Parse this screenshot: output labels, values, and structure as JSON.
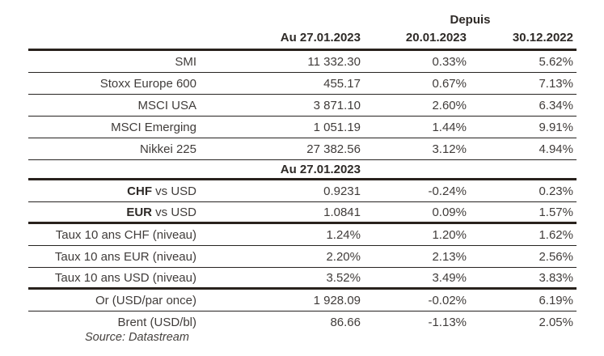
{
  "table": {
    "header": {
      "since_label": "Depuis",
      "col_value": "Au 27.01.2023",
      "col_week": "20.01.2023",
      "col_ytd": "30.12.2022"
    },
    "mid_header": {
      "date_label": "Au 27.01.2023"
    },
    "rows": [
      {
        "label_bold": "",
        "label": "SMI",
        "value": "11 332.30",
        "chg_week": "0.33%",
        "chg_ytd": "5.62%"
      },
      {
        "label_bold": "",
        "label": "Stoxx Europe 600",
        "value": "455.17",
        "chg_week": "0.67%",
        "chg_ytd": "7.13%"
      },
      {
        "label_bold": "",
        "label": "MSCI USA",
        "value": "3 871.10",
        "chg_week": "2.60%",
        "chg_ytd": "6.34%"
      },
      {
        "label_bold": "",
        "label": "MSCI Emerging",
        "value": "1 051.19",
        "chg_week": "1.44%",
        "chg_ytd": "9.91%"
      },
      {
        "label_bold": "",
        "label": "Nikkei 225",
        "value": "27 382.56",
        "chg_week": "3.12%",
        "chg_ytd": "4.94%"
      },
      {
        "label_bold": "CHF",
        "label": " vs USD",
        "value": "0.9231",
        "chg_week": "-0.24%",
        "chg_ytd": "0.23%"
      },
      {
        "label_bold": "EUR",
        "label": " vs USD",
        "value": "1.0841",
        "chg_week": "0.09%",
        "chg_ytd": "1.57%"
      },
      {
        "label_bold": "",
        "label": "Taux 10 ans CHF (niveau)",
        "value": "1.24%",
        "chg_week": "1.20%",
        "chg_ytd": "1.62%"
      },
      {
        "label_bold": "",
        "label": "Taux 10 ans EUR (niveau)",
        "value": "2.20%",
        "chg_week": "2.13%",
        "chg_ytd": "2.56%"
      },
      {
        "label_bold": "",
        "label": "Taux 10 ans USD (niveau)",
        "value": "3.52%",
        "chg_week": "3.49%",
        "chg_ytd": "3.83%"
      },
      {
        "label_bold": "",
        "label": "Or (USD/par once)",
        "value": "1 928.09",
        "chg_week": "-0.02%",
        "chg_ytd": "6.19%"
      },
      {
        "label_bold": "",
        "label": "Brent (USD/bl)",
        "value": "86.66",
        "chg_week": "-1.13%",
        "chg_ytd": "2.05%"
      }
    ]
  },
  "source_note": "Source: Datastream",
  "colors": {
    "text": "#403c3a",
    "bold_text": "#2e2a27",
    "rule_thick": "#29221d",
    "rule_thin": "#262321",
    "background": "#ffffff"
  }
}
